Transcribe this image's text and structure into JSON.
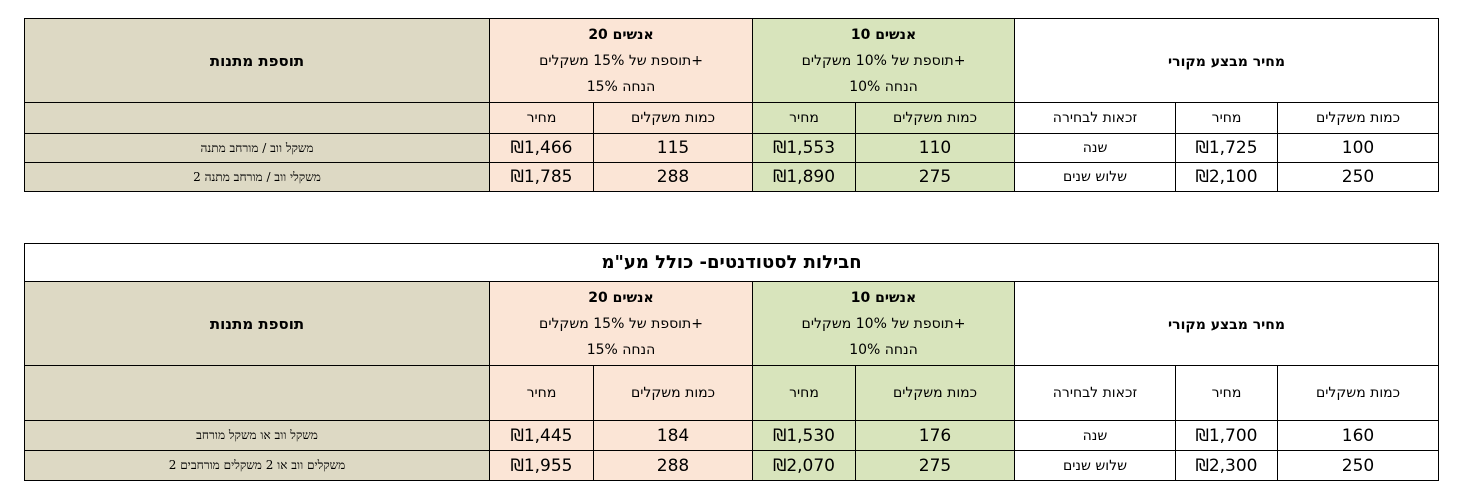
{
  "table1": {
    "gift_header": "תוספת מתנות",
    "group20": {
      "title": "20 אנשים",
      "line2": "תוספת של 15% משקלים+",
      "line3": "15% הנחה"
    },
    "group10": {
      "title": "10 אנשים",
      "line2": "תוספת של 10% משקלים+",
      "line3": "10% הנחה"
    },
    "original_header": "מחיר מבצע מקורי",
    "columns": {
      "price20": "מחיר",
      "qty20": "כמות משקלים",
      "price10": "מחיר",
      "qty10": "כמות משקלים",
      "rights": "זכאות לבחירה",
      "price": "מחיר",
      "qty": "כמות משקלים"
    },
    "rows": [
      {
        "gift": "משקל ווב / מורחב מתנה",
        "price20": "₪1,466",
        "qty20": "115",
        "price10": "₪1,553",
        "qty10": "110",
        "rights": "שנה",
        "price": "₪1,725",
        "qty": "100"
      },
      {
        "gift": "2 משקלי ווב / מורחב מתנה",
        "price20": "₪1,785",
        "qty20": "288",
        "price10": "₪1,890",
        "qty10": "275",
        "rights": "שלוש שנים",
        "price": "₪2,100",
        "qty": "250"
      }
    ]
  },
  "table2": {
    "caption": "חבילות לסטודנטים-  כולל מע\"מ",
    "gift_header": "תוספת מתנות",
    "group20": {
      "title": "20 אנשים",
      "line2": "תוספת של 15% משקלים+",
      "line3": "15% הנחה"
    },
    "group10": {
      "title": "10 אנשים",
      "line2": "תוספת של 10% משקלים+",
      "line3": "10% הנחה"
    },
    "original_header": "מחיר מבצע מקורי",
    "columns": {
      "price20": "מחיר",
      "qty20": "כמות משקלים",
      "price10": "מחיר",
      "qty10": "כמות משקלים",
      "rights": "זכאות לבחירה",
      "price": "מחיר",
      "qty": "כמות משקלים"
    },
    "rows": [
      {
        "gift": "משקל ווב או משקל מורחב",
        "price20": "₪1,445",
        "qty20": "184",
        "price10": "₪1,530",
        "qty10": "176",
        "rights": "שנה",
        "price": "₪1,700",
        "qty": "160"
      },
      {
        "gift": "2 משקלים ווב או 2 משקלים מורחבים",
        "price20": "₪1,955",
        "qty20": "288",
        "price10": "₪2,070",
        "qty10": "275",
        "rights": "שלוש שנים",
        "price": "₪2,300",
        "qty": "250"
      }
    ]
  }
}
